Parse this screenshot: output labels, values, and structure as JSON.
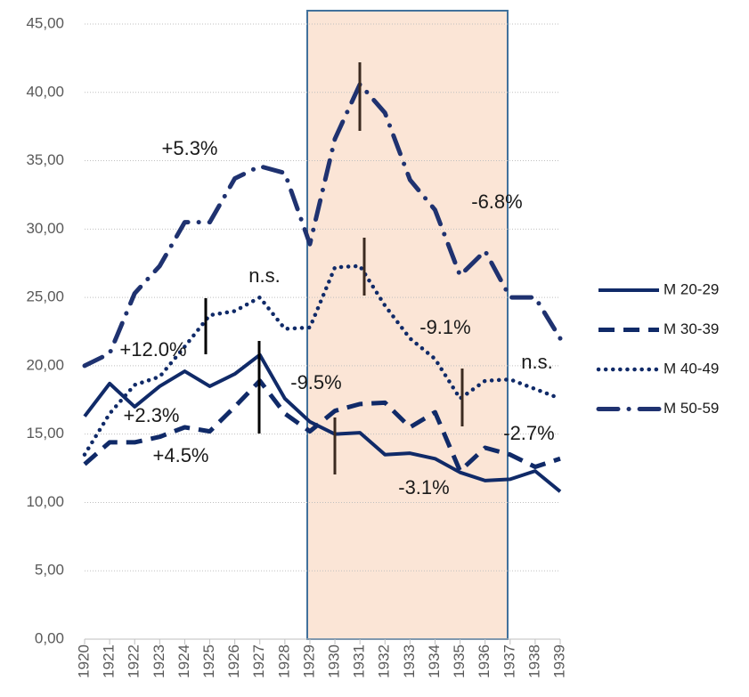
{
  "chart_data": {
    "type": "line",
    "categories": [
      "1920",
      "1921",
      "1922",
      "1923",
      "1924",
      "1925",
      "1926",
      "1927",
      "1928",
      "1929",
      "1930",
      "1931",
      "1932",
      "1933",
      "1934",
      "1935",
      "1936",
      "1937",
      "1938",
      "1939"
    ],
    "series": [
      {
        "name": "M 20-29",
        "color": "#102a68",
        "values": [
          16.3,
          18.7,
          17.0,
          18.5,
          19.6,
          18.5,
          19.4,
          20.8,
          17.6,
          15.9,
          15.0,
          15.1,
          13.5,
          13.6,
          13.2,
          12.2,
          11.6,
          11.7,
          12.3,
          10.8
        ]
      },
      {
        "name": "M 30-39",
        "color": "#102a68",
        "values": [
          12.8,
          14.4,
          14.4,
          14.8,
          15.5,
          15.2,
          17.0,
          18.9,
          16.5,
          15.2,
          16.7,
          17.2,
          17.3,
          15.5,
          16.6,
          12.3,
          14.0,
          13.5,
          12.6,
          13.2
        ]
      },
      {
        "name": "M 40-49",
        "color": "#102a68",
        "values": [
          13.5,
          16.5,
          18.6,
          19.2,
          21.4,
          23.7,
          24.0,
          25.0,
          22.7,
          22.8,
          27.2,
          27.3,
          24.4,
          22.0,
          20.5,
          17.6,
          18.9,
          19.0,
          18.3,
          17.6
        ]
      },
      {
        "name": "M 50-59",
        "color": "#1f3270",
        "values": [
          20.0,
          20.9,
          25.3,
          27.3,
          30.5,
          30.5,
          33.7,
          34.6,
          34.1,
          28.9,
          36.6,
          40.6,
          38.5,
          33.6,
          31.4,
          26.6,
          28.4,
          25.0,
          25.0,
          22.0
        ]
      }
    ],
    "ylim": [
      0,
      45
    ],
    "yticks": [
      {
        "value": 0,
        "label": "0,00"
      },
      {
        "value": 5,
        "label": "5,00"
      },
      {
        "value": 10,
        "label": "10,00"
      },
      {
        "value": 15,
        "label": "15,00"
      },
      {
        "value": 20,
        "label": "20,00"
      },
      {
        "value": 25,
        "label": "25,00"
      },
      {
        "value": 30,
        "label": "30,00"
      },
      {
        "value": 35,
        "label": "35,00"
      },
      {
        "value": 40,
        "label": "40,00"
      },
      {
        "value": 45,
        "label": "45,00"
      }
    ],
    "grid": true,
    "legend": "right",
    "annotations": [
      "+5.3%",
      "n.s.",
      "+12.0%",
      "+2.3%",
      "+4.5%",
      "-9.5%",
      "-6.8%",
      "-9.1%",
      "n.s.",
      "-2.7%",
      "-3.1%"
    ]
  }
}
